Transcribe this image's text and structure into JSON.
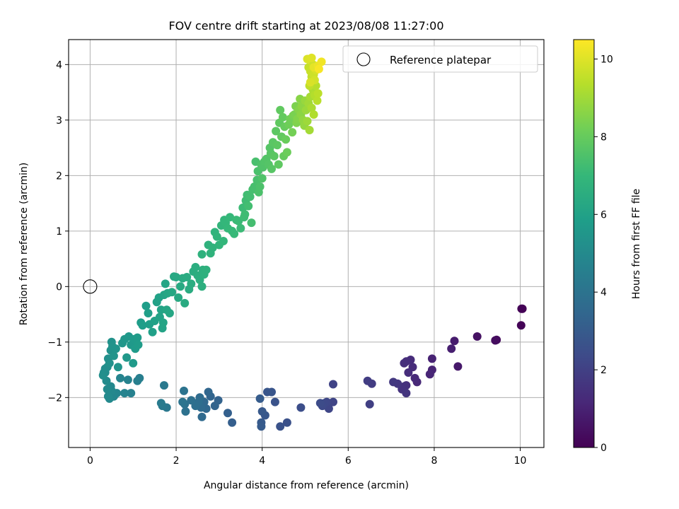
{
  "chart_data": {
    "type": "scatter",
    "title": "FOV centre drift starting at 2023/08/08 11:27:00",
    "xlabel": "Angular distance from reference (arcmin)",
    "ylabel": "Rotation from reference (arcmin)",
    "xlim": [
      -0.5,
      10.55
    ],
    "ylim": [
      -2.9,
      4.45
    ],
    "xticks": [
      0,
      2,
      4,
      6,
      8,
      10
    ],
    "yticks": [
      -2,
      -1,
      0,
      1,
      2,
      3,
      4
    ],
    "grid": true,
    "legend": {
      "placement": "top-right",
      "entries": [
        "Reference platepar"
      ]
    },
    "reference_point": {
      "x": 0,
      "y": 0
    },
    "colorbar": {
      "label": "Hours from first FF file",
      "range": [
        0,
        10.5
      ],
      "ticks": [
        0,
        2,
        4,
        6,
        8,
        10
      ],
      "colormap": "viridis",
      "stops": [
        "#440154",
        "#482878",
        "#3e4a89",
        "#31688e",
        "#26828e",
        "#1f9e89",
        "#35b779",
        "#6ece58",
        "#b5de2b",
        "#fde725"
      ]
    },
    "points": [
      [
        10.05,
        -0.4,
        0.0
      ],
      [
        10.03,
        -0.4,
        0.05
      ],
      [
        10.02,
        -0.7,
        0.1
      ],
      [
        9.45,
        -0.96,
        0.3
      ],
      [
        9.42,
        -0.97,
        0.35
      ],
      [
        9.0,
        -0.9,
        0.5
      ],
      [
        8.55,
        -1.44,
        0.7
      ],
      [
        8.47,
        -0.98,
        0.8
      ],
      [
        8.4,
        -1.12,
        0.9
      ],
      [
        7.95,
        -1.3,
        1.0
      ],
      [
        7.95,
        -1.5,
        1.05
      ],
      [
        7.9,
        -1.58,
        1.1
      ],
      [
        7.6,
        -1.72,
        1.2
      ],
      [
        7.55,
        -1.65,
        1.25
      ],
      [
        7.5,
        -1.45,
        1.3
      ],
      [
        7.45,
        -1.32,
        1.32
      ],
      [
        7.4,
        -1.55,
        1.35
      ],
      [
        7.35,
        -1.35,
        1.38
      ],
      [
        7.3,
        -1.38,
        1.4
      ],
      [
        7.35,
        -1.78,
        1.45
      ],
      [
        7.3,
        -1.8,
        1.5
      ],
      [
        7.25,
        -1.85,
        1.55
      ],
      [
        7.35,
        -1.92,
        1.6
      ],
      [
        7.15,
        -1.75,
        1.65
      ],
      [
        7.05,
        -1.72,
        1.7
      ],
      [
        6.55,
        -1.75,
        1.85
      ],
      [
        6.45,
        -1.7,
        1.9
      ],
      [
        6.5,
        -2.12,
        1.95
      ],
      [
        5.65,
        -1.76,
        2.1
      ],
      [
        5.65,
        -2.08,
        2.15
      ],
      [
        5.55,
        -2.2,
        2.2
      ],
      [
        5.5,
        -2.08,
        2.25
      ],
      [
        5.45,
        -2.1,
        2.3
      ],
      [
        5.4,
        -2.15,
        2.35
      ],
      [
        5.35,
        -2.1,
        2.4
      ],
      [
        4.9,
        -2.18,
        2.5
      ],
      [
        4.58,
        -2.45,
        2.6
      ],
      [
        4.42,
        -2.52,
        2.65
      ],
      [
        4.3,
        -2.08,
        2.7
      ],
      [
        4.22,
        -1.9,
        2.75
      ],
      [
        4.12,
        -1.9,
        2.8
      ],
      [
        4.07,
        -2.32,
        2.85
      ],
      [
        4.0,
        -2.25,
        2.9
      ],
      [
        3.98,
        -2.45,
        2.95
      ],
      [
        3.98,
        -2.52,
        3.0
      ],
      [
        3.95,
        -2.02,
        3.05
      ],
      [
        3.3,
        -2.45,
        3.15
      ],
      [
        3.2,
        -2.28,
        3.2
      ],
      [
        2.98,
        -2.05,
        3.3
      ],
      [
        2.9,
        -2.15,
        3.35
      ],
      [
        2.8,
        -1.98,
        3.4
      ],
      [
        2.75,
        -1.9,
        3.45
      ],
      [
        2.7,
        -2.2,
        3.5
      ],
      [
        2.65,
        -2.08,
        3.55
      ],
      [
        2.6,
        -2.35,
        3.6
      ],
      [
        2.58,
        -2.18,
        3.65
      ],
      [
        2.55,
        -2.0,
        3.7
      ],
      [
        2.52,
        -2.08,
        3.75
      ],
      [
        2.45,
        -2.15,
        3.8
      ],
      [
        2.35,
        -2.05,
        3.85
      ],
      [
        2.22,
        -2.25,
        3.9
      ],
      [
        2.2,
        -2.12,
        3.95
      ],
      [
        2.18,
        -1.88,
        4.0
      ],
      [
        2.15,
        -2.08,
        4.05
      ],
      [
        1.78,
        -2.18,
        4.2
      ],
      [
        1.72,
        -1.78,
        4.25
      ],
      [
        1.68,
        -2.15,
        4.3
      ],
      [
        1.65,
        -2.1,
        4.35
      ],
      [
        1.15,
        -1.65,
        4.5
      ],
      [
        1.1,
        -1.7,
        4.55
      ],
      [
        0.95,
        -1.92,
        4.6
      ],
      [
        0.88,
        -1.68,
        4.65
      ],
      [
        0.8,
        -1.92,
        4.7
      ],
      [
        0.7,
        -1.65,
        4.75
      ],
      [
        0.62,
        -1.92,
        4.8
      ],
      [
        0.55,
        -1.98,
        4.85
      ],
      [
        0.5,
        -1.88,
        4.9
      ],
      [
        0.48,
        -1.8,
        4.92
      ],
      [
        0.45,
        -2.02,
        4.95
      ],
      [
        0.42,
        -1.98,
        5.0
      ],
      [
        0.4,
        -1.85,
        5.02
      ],
      [
        0.38,
        -1.7,
        5.05
      ],
      [
        0.35,
        -1.55,
        5.1
      ],
      [
        0.35,
        -1.48,
        5.12
      ],
      [
        0.4,
        -1.45,
        5.15
      ],
      [
        0.32,
        -1.55,
        5.18
      ],
      [
        0.3,
        -1.6,
        5.2
      ],
      [
        0.42,
        -1.3,
        5.25
      ],
      [
        0.45,
        -1.38,
        5.28
      ],
      [
        0.48,
        -1.15,
        5.3
      ],
      [
        0.5,
        -1.0,
        5.35
      ],
      [
        0.52,
        -1.08,
        5.38
      ],
      [
        0.55,
        -1.25,
        5.4
      ],
      [
        0.6,
        -1.12,
        5.42
      ],
      [
        0.65,
        -1.45,
        5.45
      ],
      [
        0.75,
        -1.02,
        5.5
      ],
      [
        0.8,
        -0.95,
        5.55
      ],
      [
        0.85,
        -1.28,
        5.58
      ],
      [
        0.9,
        -0.9,
        5.6
      ],
      [
        0.95,
        -1.05,
        5.62
      ],
      [
        1.0,
        -1.38,
        5.65
      ],
      [
        1.02,
        -0.95,
        5.68
      ],
      [
        1.05,
        -1.12,
        5.7
      ],
      [
        1.1,
        -0.92,
        5.72
      ],
      [
        1.12,
        -1.05,
        5.75
      ],
      [
        1.18,
        -0.65,
        5.8
      ],
      [
        1.22,
        -0.7,
        5.82
      ],
      [
        1.3,
        -0.35,
        5.85
      ],
      [
        1.35,
        -0.48,
        5.88
      ],
      [
        1.38,
        -0.68,
        5.9
      ],
      [
        1.45,
        -0.82,
        5.92
      ],
      [
        1.5,
        -0.62,
        5.95
      ],
      [
        1.55,
        -0.28,
        5.98
      ],
      [
        1.6,
        -0.2,
        6.0
      ],
      [
        1.62,
        -0.55,
        6.02
      ],
      [
        1.65,
        -0.42,
        6.05
      ],
      [
        1.68,
        -0.75,
        6.08
      ],
      [
        1.7,
        -0.65,
        6.1
      ],
      [
        1.72,
        -0.15,
        6.12
      ],
      [
        1.75,
        0.05,
        6.15
      ],
      [
        1.78,
        -0.42,
        6.18
      ],
      [
        1.8,
        -0.12,
        6.2
      ],
      [
        1.85,
        -0.48,
        6.22
      ],
      [
        1.9,
        -0.1,
        6.25
      ],
      [
        1.95,
        0.18,
        6.28
      ],
      [
        2.0,
        0.17,
        6.3
      ],
      [
        2.05,
        -0.2,
        6.32
      ],
      [
        2.1,
        0.0,
        6.35
      ],
      [
        2.15,
        0.15,
        6.38
      ],
      [
        2.2,
        -0.3,
        6.4
      ],
      [
        2.25,
        0.17,
        6.42
      ],
      [
        2.3,
        -0.05,
        6.45
      ],
      [
        2.35,
        0.05,
        6.48
      ],
      [
        2.4,
        0.27,
        6.5
      ],
      [
        2.45,
        0.35,
        6.52
      ],
      [
        2.5,
        0.2,
        6.55
      ],
      [
        2.55,
        0.12,
        6.58
      ],
      [
        2.6,
        -0.0,
        6.6
      ],
      [
        2.62,
        0.3,
        6.62
      ],
      [
        2.65,
        0.22,
        6.65
      ],
      [
        2.7,
        0.3,
        6.68
      ],
      [
        2.6,
        0.58,
        6.7
      ],
      [
        2.75,
        0.75,
        6.72
      ],
      [
        2.8,
        0.6,
        6.75
      ],
      [
        2.85,
        0.7,
        6.78
      ],
      [
        2.9,
        0.98,
        6.8
      ],
      [
        2.95,
        0.9,
        6.82
      ],
      [
        3.0,
        0.75,
        6.85
      ],
      [
        3.05,
        1.1,
        6.88
      ],
      [
        3.1,
        0.82,
        6.9
      ],
      [
        3.12,
        1.2,
        6.92
      ],
      [
        3.15,
        1.15,
        6.95
      ],
      [
        3.2,
        1.05,
        6.98
      ],
      [
        3.25,
        1.25,
        7.0
      ],
      [
        3.3,
        1.0,
        7.02
      ],
      [
        3.35,
        0.95,
        7.05
      ],
      [
        3.4,
        1.2,
        7.08
      ],
      [
        3.45,
        1.18,
        7.1
      ],
      [
        3.5,
        1.05,
        7.12
      ],
      [
        3.55,
        1.42,
        7.15
      ],
      [
        3.58,
        1.25,
        7.18
      ],
      [
        3.6,
        1.3,
        7.2
      ],
      [
        3.62,
        1.55,
        7.22
      ],
      [
        3.65,
        1.65,
        7.25
      ],
      [
        3.68,
        1.45,
        7.28
      ],
      [
        3.72,
        1.62,
        7.3
      ],
      [
        3.75,
        1.15,
        7.32
      ],
      [
        3.78,
        1.75,
        7.35
      ],
      [
        3.82,
        1.8,
        7.38
      ],
      [
        3.85,
        2.25,
        7.4
      ],
      [
        3.88,
        1.92,
        7.42
      ],
      [
        3.9,
        2.08,
        7.45
      ],
      [
        3.92,
        1.7,
        7.48
      ],
      [
        3.95,
        1.8,
        7.5
      ],
      [
        3.98,
        2.2,
        7.52
      ],
      [
        4.0,
        1.95,
        7.55
      ],
      [
        4.02,
        2.15,
        7.58
      ],
      [
        4.05,
        2.25,
        7.6
      ],
      [
        4.1,
        2.3,
        7.62
      ],
      [
        4.15,
        2.2,
        7.65
      ],
      [
        4.18,
        2.5,
        7.68
      ],
      [
        4.2,
        2.4,
        7.7
      ],
      [
        4.22,
        2.12,
        7.72
      ],
      [
        4.25,
        2.6,
        7.75
      ],
      [
        4.28,
        2.35,
        7.78
      ],
      [
        4.32,
        2.8,
        7.8
      ],
      [
        4.35,
        2.55,
        7.82
      ],
      [
        4.38,
        2.2,
        7.85
      ],
      [
        4.4,
        2.95,
        7.88
      ],
      [
        4.42,
        3.18,
        7.9
      ],
      [
        4.45,
        2.7,
        7.92
      ],
      [
        4.48,
        3.05,
        7.95
      ],
      [
        4.5,
        2.35,
        7.98
      ],
      [
        4.52,
        2.88,
        8.0
      ],
      [
        4.55,
        2.65,
        8.05
      ],
      [
        4.58,
        2.42,
        8.1
      ],
      [
        4.62,
        2.92,
        8.15
      ],
      [
        4.65,
        3.02,
        8.2
      ],
      [
        4.7,
        2.78,
        8.25
      ],
      [
        4.72,
        3.08,
        8.3
      ],
      [
        4.75,
        3.1,
        8.35
      ],
      [
        4.78,
        3.25,
        8.4
      ],
      [
        4.8,
        2.95,
        8.45
      ],
      [
        4.82,
        3.02,
        8.5
      ],
      [
        4.85,
        3.18,
        8.55
      ],
      [
        4.88,
        3.38,
        8.6
      ],
      [
        4.9,
        3.1,
        8.65
      ],
      [
        4.92,
        3.25,
        8.7
      ],
      [
        4.95,
        3.0,
        8.75
      ],
      [
        4.98,
        2.9,
        8.8
      ],
      [
        5.0,
        3.35,
        8.85
      ],
      [
        5.02,
        3.18,
        8.9
      ],
      [
        5.05,
        2.98,
        8.95
      ],
      [
        5.08,
        3.3,
        9.0
      ],
      [
        5.1,
        2.82,
        9.05
      ],
      [
        5.12,
        3.42,
        9.1
      ],
      [
        5.15,
        3.22,
        9.15
      ],
      [
        5.18,
        3.55,
        9.2
      ],
      [
        5.2,
        3.1,
        9.25
      ],
      [
        5.22,
        3.45,
        9.3
      ],
      [
        5.25,
        3.62,
        9.35
      ],
      [
        5.28,
        3.35,
        9.4
      ],
      [
        5.3,
        3.48,
        9.45
      ],
      [
        5.1,
        3.62,
        9.5
      ],
      [
        5.15,
        3.78,
        9.55
      ],
      [
        5.08,
        3.95,
        9.6
      ],
      [
        5.12,
        3.88,
        9.65
      ],
      [
        5.2,
        3.82,
        9.7
      ],
      [
        5.18,
        4.0,
        9.75
      ],
      [
        5.22,
        3.72,
        9.8
      ],
      [
        5.25,
        3.9,
        9.85
      ],
      [
        5.12,
        3.68,
        9.9
      ],
      [
        5.05,
        4.1,
        9.95
      ],
      [
        5.15,
        4.12,
        10.0
      ],
      [
        5.2,
        3.95,
        10.1
      ],
      [
        5.3,
        3.98,
        10.2
      ],
      [
        5.38,
        4.05,
        10.3
      ],
      [
        5.32,
        3.92,
        10.4
      ]
    ]
  }
}
